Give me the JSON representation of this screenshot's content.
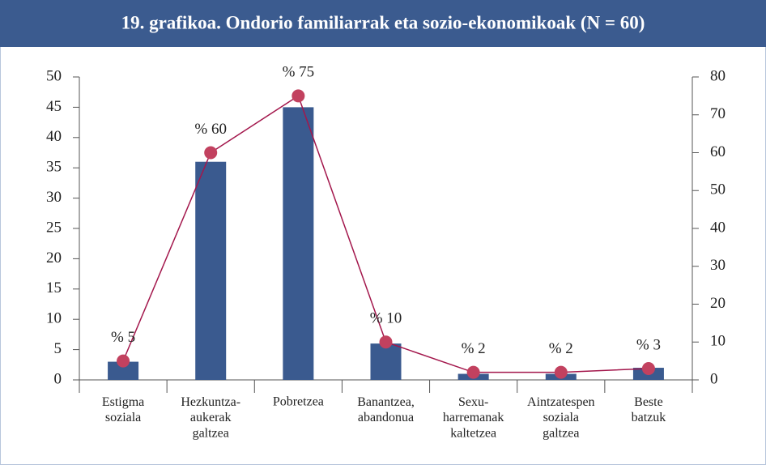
{
  "chart_data": {
    "type": "bar-line",
    "title": "19. grafikoa. Ondorio familiarrak eta sozio-ekonomikoak (N = 60)",
    "categories": [
      "Estigma\nsoziala",
      "Hezkuntza-\naukerak\ngaltzea",
      "Pobretzea",
      "Banantzea,\nabandonua",
      "Sexu-\nharremanak\nkaltetzea",
      "Aintzatespen\nsoziala\ngaltzea",
      "Beste\nbatzuk"
    ],
    "series": [
      {
        "type": "bar",
        "color": "#3a5a8f",
        "values": [
          3,
          36,
          45,
          6,
          1,
          1,
          2
        ]
      },
      {
        "type": "line",
        "axis": "y2",
        "color": "#c2415f",
        "values": [
          5,
          60,
          75,
          10,
          2,
          2,
          3
        ],
        "value_labels": [
          "% 5",
          "% 60",
          "% 75",
          "% 10",
          "% 2",
          "% 2",
          "% 3"
        ]
      }
    ],
    "ylim": [
      0,
      50
    ],
    "yticks": [
      0,
      5,
      10,
      15,
      20,
      25,
      30,
      35,
      40,
      45,
      50
    ],
    "y2lim": [
      0,
      80
    ],
    "y2ticks": [
      0,
      10,
      20,
      30,
      40,
      50,
      60,
      70,
      80
    ]
  }
}
